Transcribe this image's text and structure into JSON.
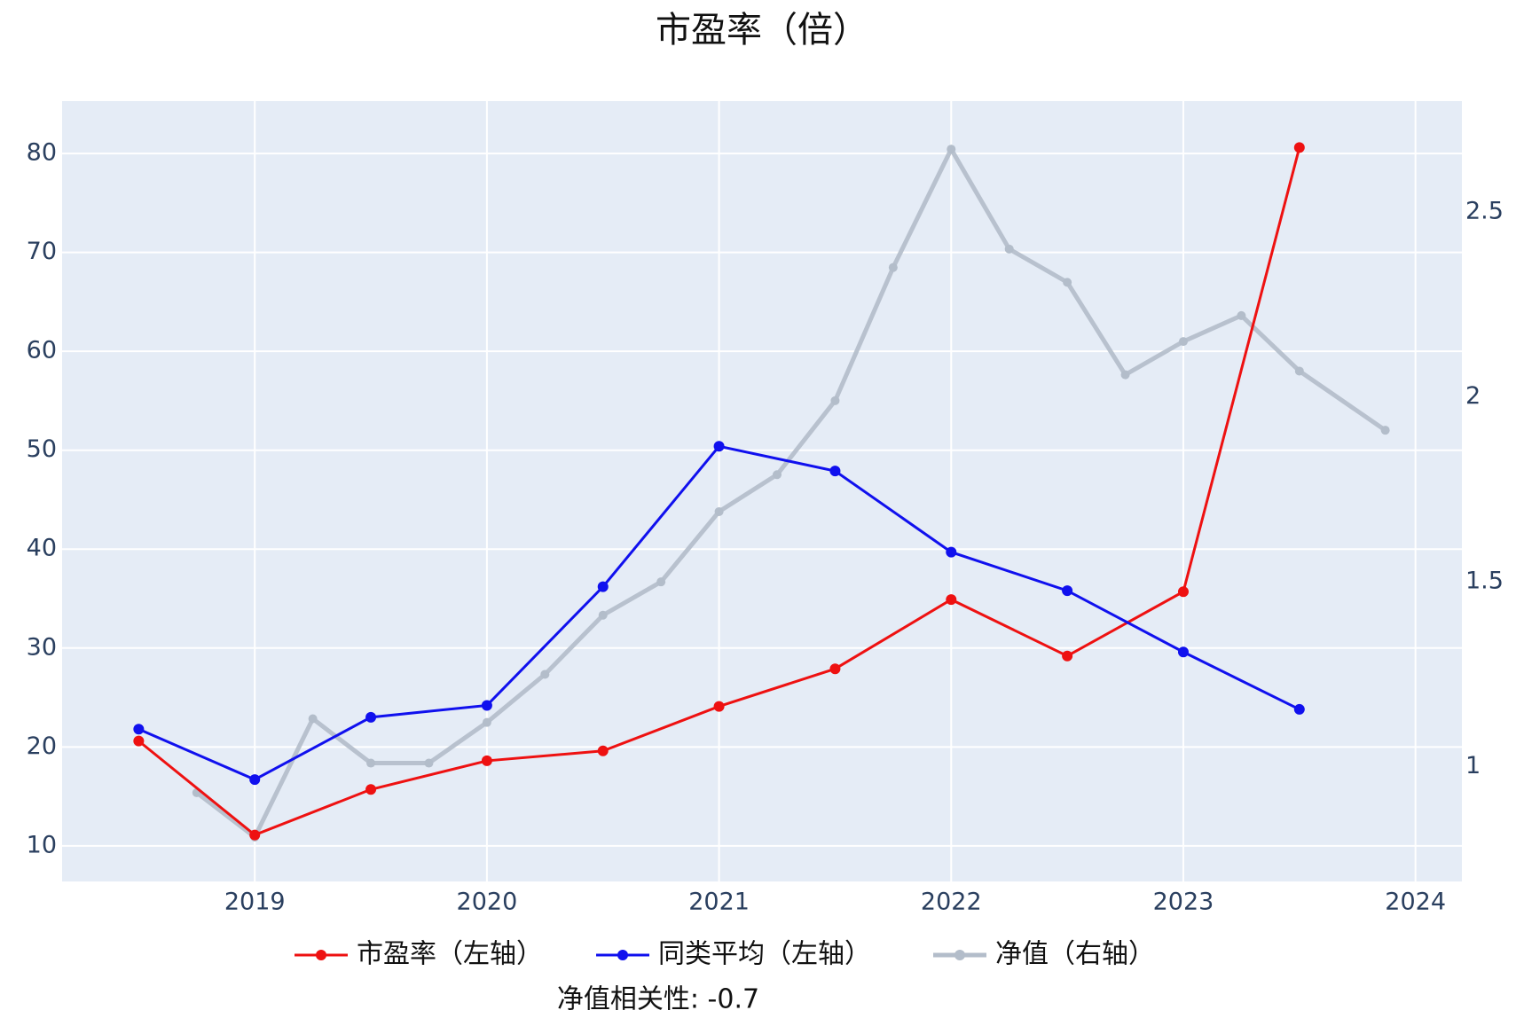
{
  "chart_data": {
    "type": "line",
    "title": "市盈率（倍）",
    "annotation": "净值相关性: -0.7",
    "xlim": [
      2018.17,
      2024.2
    ],
    "xticks": [
      2019,
      2020,
      2021,
      2022,
      2023,
      2024
    ],
    "ylim": [
      6.4,
      85.3
    ],
    "yticks": [
      10,
      20,
      30,
      40,
      50,
      60,
      70,
      80
    ],
    "y2lim": [
      0.69,
      2.8
    ],
    "y2ticks": [
      1,
      1.5,
      2,
      2.5
    ],
    "grid": true,
    "series": [
      {
        "name": "市盈率（左轴）",
        "color": "#ee1111",
        "axis": "y",
        "x": [
          2018.5,
          2019,
          2019.5,
          2020,
          2020.5,
          2021,
          2021.5,
          2022,
          2022.5,
          2023,
          2023.5
        ],
        "values": [
          20.6,
          11.1,
          15.7,
          18.6,
          19.6,
          24.1,
          27.9,
          34.9,
          29.2,
          35.7,
          80.6
        ]
      },
      {
        "name": "同类平均（左轴）",
        "color": "#1010ee",
        "axis": "y",
        "x": [
          2018.5,
          2019,
          2019.5,
          2020,
          2020.5,
          2021,
          2021.5,
          2022,
          2022.5,
          2023,
          2023.5
        ],
        "values": [
          21.8,
          16.7,
          23.0,
          24.2,
          36.2,
          50.4,
          47.9,
          39.7,
          35.8,
          29.6,
          23.8
        ]
      },
      {
        "name": "净值（右轴）",
        "color": "#b3bdca",
        "axis": "y2",
        "x": [
          2018.75,
          2019,
          2019.25,
          2019.5,
          2019.75,
          2020,
          2020.25,
          2020.5,
          2020.75,
          2021,
          2021.25,
          2021.5,
          2021.75,
          2022,
          2022.25,
          2022.5,
          2022.75,
          2023,
          2023.25,
          2023.5,
          2023.87
        ],
        "values": [
          0.93,
          0.81,
          1.13,
          1.01,
          1.01,
          1.12,
          1.25,
          1.41,
          1.5,
          1.69,
          1.79,
          1.99,
          2.35,
          2.67,
          2.4,
          2.31,
          2.06,
          2.15,
          2.22,
          2.07,
          1.91
        ]
      }
    ]
  }
}
